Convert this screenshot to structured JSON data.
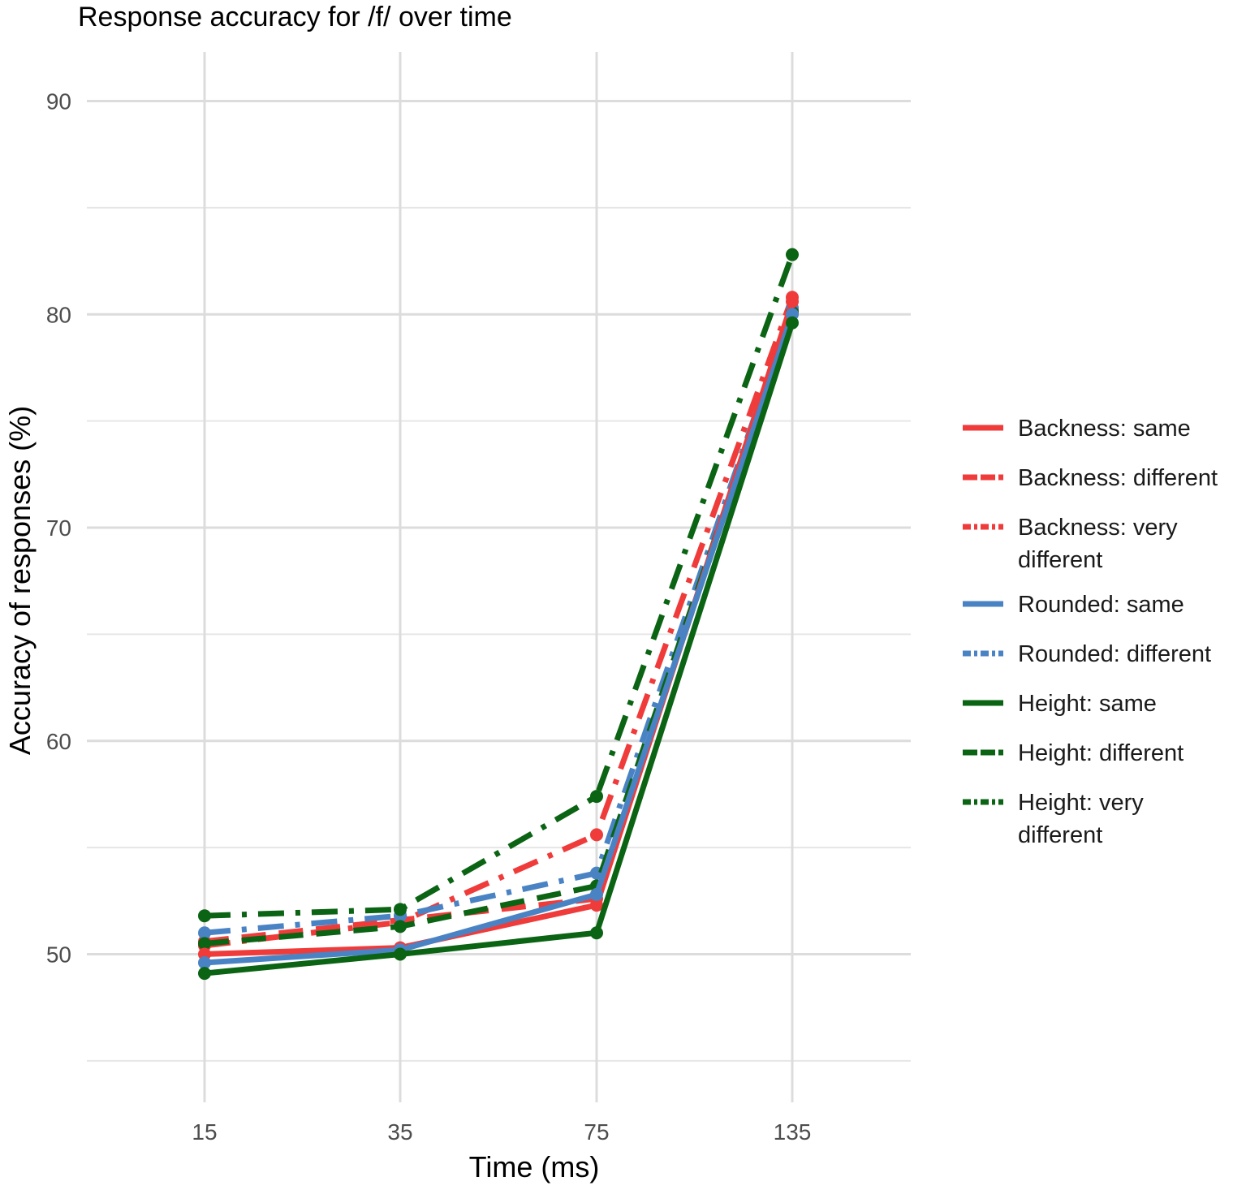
{
  "chart_data": {
    "type": "line",
    "title": "Response accuracy for /f/ over time",
    "xlabel": "Time (ms)",
    "ylabel": "Accuracy of responses (%)",
    "categories": [
      "15",
      "35",
      "75",
      "135"
    ],
    "ylim": [
      45,
      92
    ],
    "y_ticks": [
      50,
      60,
      70,
      80,
      90
    ],
    "grid": true,
    "legend_position": "right",
    "series": [
      {
        "name": "Backness: same",
        "color": "#f03b3b",
        "dash": "solid",
        "values": [
          50.0,
          50.3,
          52.3,
          80.6
        ]
      },
      {
        "name": "Backness: different",
        "color": "#f03b3b",
        "dash": "dashed",
        "values": [
          50.6,
          51.6,
          52.6,
          80.2
        ]
      },
      {
        "name": "Backness: very different",
        "color": "#f03b3b",
        "dash": "dashdot",
        "values": [
          50.4,
          51.5,
          55.6,
          80.8
        ]
      },
      {
        "name": "Rounded: same",
        "color": "#4a83c4",
        "dash": "solid",
        "values": [
          49.6,
          50.2,
          52.8,
          80.0
        ]
      },
      {
        "name": "Rounded: different",
        "color": "#4a83c4",
        "dash": "dashdot",
        "values": [
          51.0,
          51.8,
          53.8,
          80.3
        ]
      },
      {
        "name": "Height: same",
        "color": "#0b6413",
        "dash": "solid",
        "values": [
          49.1,
          50.0,
          51.0,
          79.6
        ]
      },
      {
        "name": "Height: different",
        "color": "#0b6413",
        "dash": "dashed",
        "values": [
          50.5,
          51.3,
          53.2,
          80.1
        ]
      },
      {
        "name": "Height: very different",
        "color": "#0b6413",
        "dash": "dashdot",
        "values": [
          51.8,
          52.1,
          57.4,
          82.8
        ]
      }
    ]
  }
}
